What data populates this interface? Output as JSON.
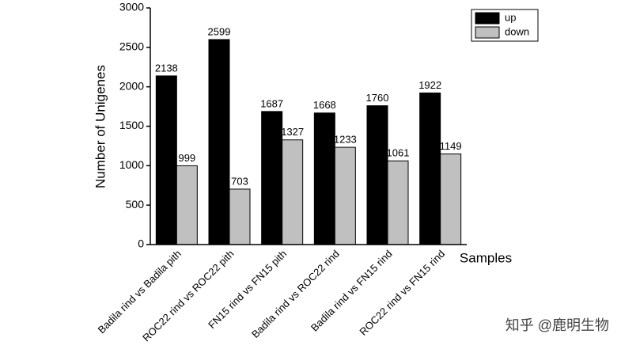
{
  "chart_data": {
    "type": "bar",
    "y_label": "Number of Unigenes",
    "x_label": "Samples",
    "categories": [
      "Badila rind vs Badila pith",
      "ROC22 rind vs ROC22 pith",
      "FN15 rind vs FN15 pith",
      "Badila rind vs ROC22 rind",
      "Badila rind vs FN15 rind",
      "ROC22 rind vs FN15 rind"
    ],
    "series": [
      {
        "name": "up",
        "color": "#000000",
        "values": [
          2138,
          2599,
          1687,
          1668,
          1760,
          1922
        ]
      },
      {
        "name": "down",
        "color": "#c0c0c0",
        "values": [
          999,
          703,
          1327,
          1233,
          1061,
          1149
        ]
      }
    ],
    "ylim": [
      0,
      3000
    ],
    "yticks": [
      0,
      500,
      1000,
      1500,
      2000,
      2500,
      3000
    ],
    "legend": "top-right"
  },
  "watermark": "知乎 @鹿明生物"
}
